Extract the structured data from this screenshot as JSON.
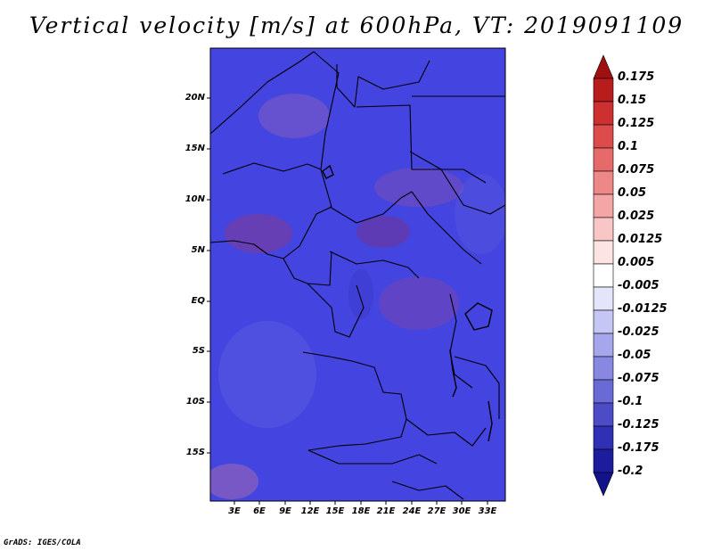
{
  "title": "Vertical velocity [m/s] at 600hPa, VT: 2019091109",
  "map": {
    "lat_labels": [
      "20N",
      "15N",
      "10N",
      "5N",
      "EQ",
      "5S",
      "10S",
      "15S"
    ],
    "lon_labels": [
      "3E",
      "6E",
      "9E",
      "12E",
      "15E",
      "18E",
      "21E",
      "24E",
      "27E",
      "30E",
      "33E"
    ]
  },
  "colorbar": {
    "labels": [
      "0.175",
      "0.15",
      "0.125",
      "0.1",
      "0.075",
      "0.05",
      "0.025",
      "0.0125",
      "0.005",
      "-0.005",
      "-0.0125",
      "-0.025",
      "-0.05",
      "-0.075",
      "-0.1",
      "-0.125",
      "-0.175",
      "-0.2"
    ],
    "colors": [
      "#a01010",
      "#b81c1c",
      "#cc3030",
      "#dc4c4c",
      "#e66a6a",
      "#ee8888",
      "#f4a6a6",
      "#f9c6c6",
      "#fde4e4",
      "#ffffff",
      "#e4e4fa",
      "#c6c6f4",
      "#a6a6ec",
      "#8888e2",
      "#6a6ad6",
      "#4c4cc8",
      "#3030b4",
      "#1c1c9c",
      "#12128a"
    ]
  },
  "credit": "GrADS: IGES/COLA"
}
